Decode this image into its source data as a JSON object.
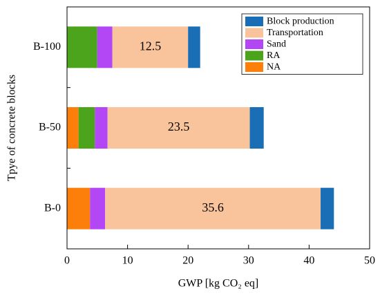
{
  "chart_data": {
    "type": "stacked_barh",
    "x_label": "GWP [kg CO₂ eq]",
    "y_label": "Tpye of concrete blocks",
    "categories": [
      "B-0",
      "B-50",
      "B-100"
    ],
    "series": [
      {
        "name": "NA",
        "color": "#fb7f0a",
        "values": [
          3.8,
          1.9,
          0
        ]
      },
      {
        "name": "RA",
        "color": "#4ca41d",
        "values": [
          0,
          2.7,
          5.0
        ]
      },
      {
        "name": "Sand",
        "color": "#b347f5",
        "values": [
          2.5,
          2.1,
          2.5
        ]
      },
      {
        "name": "Transportation",
        "color": "#f9c39b",
        "values": [
          35.6,
          23.5,
          12.5
        ],
        "data_labels": true
      },
      {
        "name": "Block production",
        "color": "#1a6eb5",
        "values": [
          2.2,
          2.3,
          2.0
        ]
      }
    ],
    "xlim": [
      0,
      50
    ],
    "xticks": [
      0,
      10,
      20,
      30,
      40,
      50
    ],
    "legend": "upper right"
  }
}
